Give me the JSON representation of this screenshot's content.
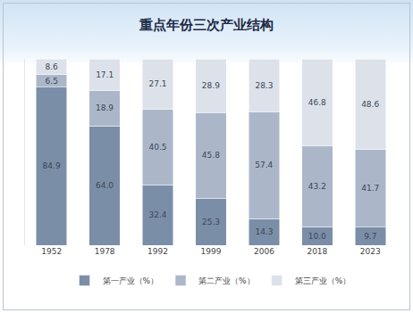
{
  "chart_data": {
    "type": "bar",
    "title": "重点年份三次产业结构",
    "categories": [
      "1952",
      "1978",
      "1992",
      "1999",
      "2006",
      "2018",
      "2023"
    ],
    "series": [
      {
        "name": "第一产业（%）",
        "color": "#7b8ea8",
        "values": [
          84.9,
          64.0,
          32.4,
          25.3,
          14.3,
          10.0,
          9.7
        ],
        "value_labels": [
          "84.9",
          "64.0",
          "32.4",
          "25.3",
          "14.3",
          "10.0",
          "9.7"
        ]
      },
      {
        "name": "第二产业（%）",
        "color": "#abb7c9",
        "values": [
          6.5,
          18.9,
          40.5,
          45.8,
          57.4,
          43.2,
          41.7
        ],
        "value_labels": [
          "6.5",
          "18.9",
          "40.5",
          "45.8",
          "57.4",
          "43.2",
          "41.7"
        ]
      },
      {
        "name": "第三产业（%）",
        "color": "#dde2ea",
        "values": [
          8.6,
          17.1,
          27.1,
          28.9,
          28.3,
          46.8,
          48.6
        ],
        "value_labels": [
          "8.6",
          "17.1",
          "27.1",
          "28.9",
          "28.3",
          "46.8",
          "48.6"
        ]
      }
    ],
    "ylim": [
      0,
      100
    ],
    "stacked": true,
    "data_labels": true,
    "tick_labels": "x",
    "legend": "bottom",
    "grid": false
  }
}
